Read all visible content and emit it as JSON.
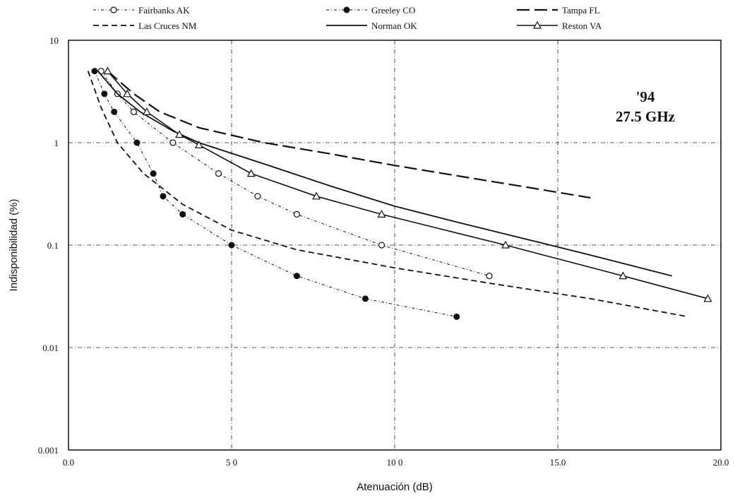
{
  "chart_data": {
    "type": "line",
    "xlabel": "Atenuación (dB)",
    "ylabel": "Indisponibilidad (%)",
    "xlim": [
      0,
      20
    ],
    "ylim": [
      0.001,
      10
    ],
    "y_scale": "log",
    "grid": "dash-dot",
    "legend_position": "top",
    "x_ticks": [
      {
        "value": 0,
        "label": "0.0"
      },
      {
        "value": 5,
        "label": "5 0"
      },
      {
        "value": 10,
        "label": "10 0"
      },
      {
        "value": 15,
        "label": "15.0"
      },
      {
        "value": 20,
        "label": "20.0"
      }
    ],
    "y_ticks": [
      {
        "value": 0.001,
        "label": "0.001"
      },
      {
        "value": 0.01,
        "label": "0.01"
      },
      {
        "value": 0.1,
        "label": "0.1"
      },
      {
        "value": 1,
        "label": "1"
      },
      {
        "value": 10,
        "label": "10"
      }
    ],
    "annotation": {
      "line1": "'94",
      "line2": "27.5 GHz"
    },
    "series": [
      {
        "name": "Fairbanks AK",
        "marker": "open-circle",
        "dash": "4 3 1 3",
        "width": 1,
        "points": [
          [
            1.0,
            5
          ],
          [
            1.5,
            3
          ],
          [
            2.0,
            2
          ],
          [
            3.2,
            1
          ],
          [
            4.6,
            0.5
          ],
          [
            5.8,
            0.3
          ],
          [
            7.0,
            0.2
          ],
          [
            9.6,
            0.1
          ],
          [
            12.9,
            0.05
          ]
        ]
      },
      {
        "name": "Greeley CO",
        "marker": "filled-circle",
        "dash": "4 3 1 3",
        "width": 1,
        "points": [
          [
            0.8,
            5
          ],
          [
            1.1,
            3
          ],
          [
            1.4,
            2
          ],
          [
            2.1,
            1
          ],
          [
            2.6,
            0.5
          ],
          [
            2.9,
            0.3
          ],
          [
            3.5,
            0.2
          ],
          [
            5.0,
            0.1
          ],
          [
            7.0,
            0.05
          ],
          [
            9.1,
            0.03
          ],
          [
            11.9,
            0.02
          ]
        ]
      },
      {
        "name": "Tampa FL",
        "marker": "none",
        "dash": "18 7",
        "width": 2.2,
        "points": [
          [
            1.2,
            5
          ],
          [
            2.0,
            3
          ],
          [
            2.8,
            2
          ],
          [
            4.0,
            1.4
          ],
          [
            6.0,
            1.0
          ],
          [
            8.0,
            0.78
          ],
          [
            10.0,
            0.6
          ],
          [
            12.0,
            0.47
          ],
          [
            14.0,
            0.37
          ],
          [
            16.0,
            0.29
          ]
        ]
      },
      {
        "name": "Las Cruces NM",
        "marker": "none",
        "dash": "8 5",
        "width": 1.8,
        "points": [
          [
            0.6,
            5
          ],
          [
            1.0,
            2.2
          ],
          [
            1.5,
            1
          ],
          [
            2.3,
            0.5
          ],
          [
            3.5,
            0.25
          ],
          [
            5.0,
            0.14
          ],
          [
            7.0,
            0.09
          ],
          [
            10.0,
            0.06
          ],
          [
            13.0,
            0.042
          ],
          [
            16.0,
            0.03
          ],
          [
            19.0,
            0.02
          ]
        ]
      },
      {
        "name": "Norman OK",
        "marker": "none",
        "dash": "",
        "width": 1.8,
        "points": [
          [
            0.9,
            5
          ],
          [
            1.5,
            3
          ],
          [
            2.2,
            2
          ],
          [
            3.2,
            1.3
          ],
          [
            4.0,
            1.0
          ],
          [
            6.0,
            0.62
          ],
          [
            8.0,
            0.38
          ],
          [
            10.0,
            0.24
          ],
          [
            12.0,
            0.165
          ],
          [
            14.0,
            0.115
          ],
          [
            16.0,
            0.08
          ],
          [
            18.5,
            0.05
          ]
        ]
      },
      {
        "name": "Reston VA",
        "marker": "open-triangle",
        "dash": "",
        "width": 1.6,
        "points": [
          [
            1.2,
            5
          ],
          [
            1.8,
            3
          ],
          [
            2.4,
            2
          ],
          [
            3.4,
            1.2
          ],
          [
            4.0,
            0.95
          ],
          [
            5.6,
            0.5
          ],
          [
            7.6,
            0.3
          ],
          [
            9.6,
            0.2
          ],
          [
            13.4,
            0.1
          ],
          [
            17.0,
            0.05
          ],
          [
            19.6,
            0.03
          ]
        ]
      }
    ]
  }
}
